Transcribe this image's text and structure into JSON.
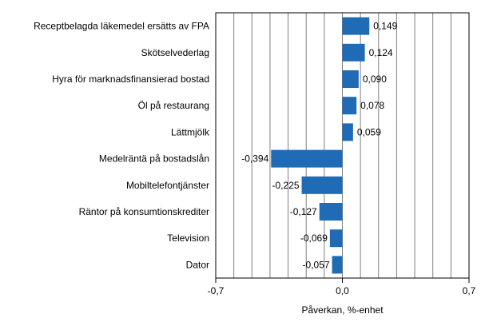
{
  "chart_data": {
    "type": "bar",
    "orientation": "horizontal",
    "categories": [
      "Receptbelagda läkemedel ersätts av FPA",
      "Skötselvederlag",
      "Hyra för marknadsfinansierad bostad",
      "Öl på restaurang",
      "Lättmjölk",
      "Medelräntä på bostadslån",
      "Mobiltelefontjänster",
      "Räntor på konsumtionskrediter",
      "Television",
      "Dator"
    ],
    "values": [
      0.149,
      0.124,
      0.09,
      0.078,
      0.059,
      -0.394,
      -0.225,
      -0.127,
      -0.069,
      -0.057
    ],
    "value_labels": [
      "0,149",
      "0,124",
      "0,090",
      "0,078",
      "0,059",
      "-0,394",
      "-0,225",
      "-0,127",
      "-0,069",
      "-0,057"
    ],
    "xlim": [
      -0.7,
      0.7
    ],
    "x_ticks": [
      -0.7,
      0.0,
      0.7
    ],
    "x_tick_labels": [
      "-0,7",
      "0,0",
      "0,7"
    ],
    "gridline_step": 0.1,
    "grid": true,
    "xlabel": "Påverkan, %-enhet",
    "title": "",
    "bar_color": "#1f6bb5",
    "grid_color": "#808080",
    "legend": "none"
  }
}
